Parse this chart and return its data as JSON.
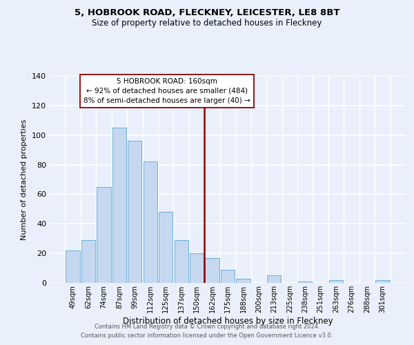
{
  "title": "5, HOBROOK ROAD, FLECKNEY, LEICESTER, LE8 8BT",
  "subtitle": "Size of property relative to detached houses in Fleckney",
  "xlabel": "Distribution of detached houses by size in Fleckney",
  "ylabel": "Number of detached properties",
  "bar_labels": [
    "49sqm",
    "62sqm",
    "74sqm",
    "87sqm",
    "99sqm",
    "112sqm",
    "125sqm",
    "137sqm",
    "150sqm",
    "162sqm",
    "175sqm",
    "188sqm",
    "200sqm",
    "213sqm",
    "225sqm",
    "238sqm",
    "251sqm",
    "263sqm",
    "276sqm",
    "288sqm",
    "301sqm"
  ],
  "bar_values": [
    22,
    29,
    65,
    105,
    96,
    82,
    48,
    29,
    20,
    17,
    9,
    3,
    0,
    5,
    0,
    1,
    0,
    2,
    0,
    0,
    2
  ],
  "bar_color": "#c5d8f0",
  "bar_edge_color": "#6baed6",
  "bg_color": "#eaf0fb",
  "grid_color": "#ffffff",
  "vline_color": "#8b0000",
  "annotation_line1": "5 HOBROOK ROAD: 160sqm",
  "annotation_line2": "← 92% of detached houses are smaller (484)",
  "annotation_line3": "8% of semi-detached houses are larger (40) →",
  "annotation_box_color": "#ffffff",
  "annotation_box_edge_color": "#8b0000",
  "ylim": [
    0,
    140
  ],
  "yticks": [
    0,
    20,
    40,
    60,
    80,
    100,
    120,
    140
  ],
  "footer1": "Contains HM Land Registry data © Crown copyright and database right 2024.",
  "footer2": "Contains public sector information licensed under the Open Government Licence v3.0."
}
